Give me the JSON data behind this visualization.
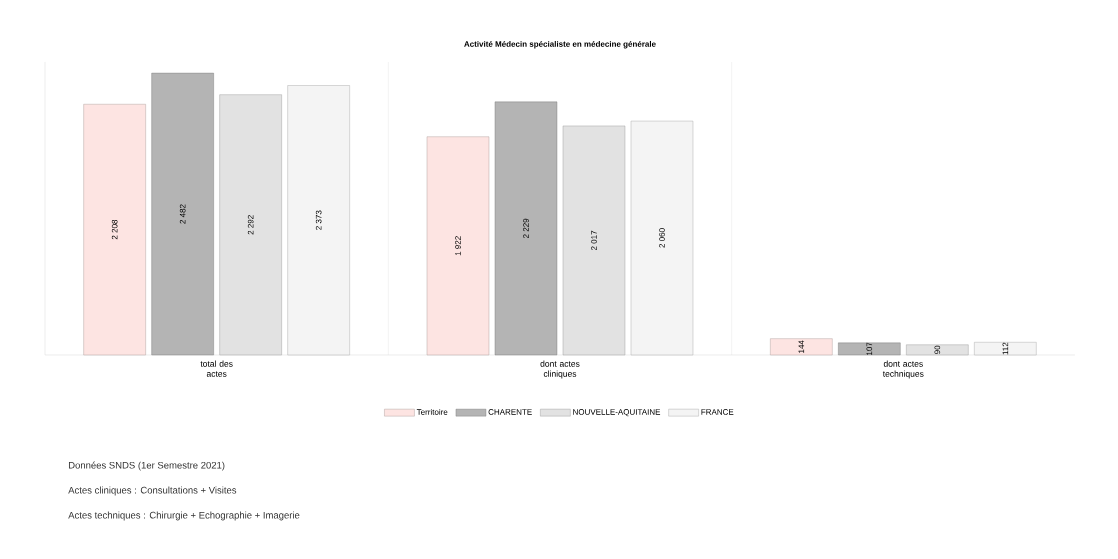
{
  "chart_data": {
    "type": "bar",
    "title": "Activité Médecin spécialiste en médecine générale",
    "categories": [
      "total des actes",
      "dont actes cliniques",
      "dont actes techniques"
    ],
    "ylim": [
      0,
      2580
    ],
    "tick_labels": "x",
    "legend": "bottom",
    "annotations": [
      "Données SNDS (1er Semestre 2021)",
      "Actes cliniques : Consultations + Visites",
      "Actes techniques : Chirurgie + Echographie + Imagerie"
    ],
    "series": [
      {
        "name": "Territoire",
        "color": "#fde4e2",
        "values": [
          2208,
          1922,
          144
        ],
        "value_labels": [
          "2 208",
          "1 922",
          "144"
        ]
      },
      {
        "name": "CHARENTE",
        "color": "#b4b4b4",
        "values": [
          2482,
          2229,
          107
        ],
        "value_labels": [
          "2 482",
          "2 229",
          "107"
        ]
      },
      {
        "name": "NOUVELLE-AQUITAINE",
        "color": "#e2e2e2",
        "values": [
          2292,
          2017,
          90
        ],
        "value_labels": [
          "2 292",
          "2 017",
          "90"
        ]
      },
      {
        "name": "FRANCE",
        "color": "#f4f4f4",
        "values": [
          2373,
          2060,
          112
        ],
        "value_labels": [
          "2 373",
          "2 060",
          "112"
        ]
      }
    ]
  }
}
